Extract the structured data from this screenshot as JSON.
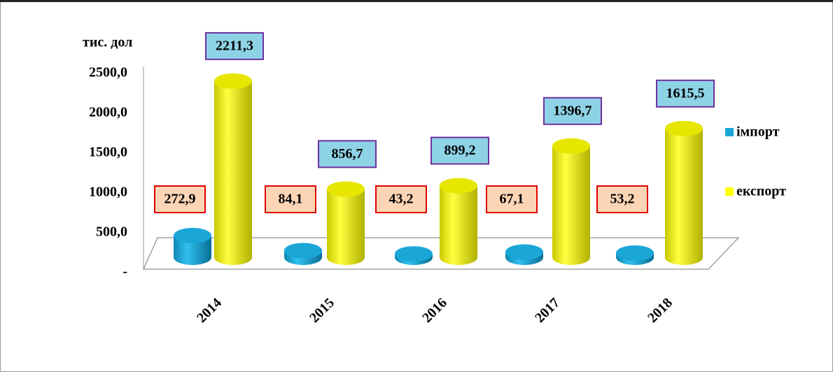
{
  "chart_data": {
    "type": "bar3d",
    "y_label": "тис. дол",
    "categories": [
      "2014",
      "2015",
      "2016",
      "2017",
      "2018"
    ],
    "series": [
      {
        "name": "імпорт",
        "color": "#1aa7d8",
        "values": [
          272.9,
          84.1,
          43.2,
          67.1,
          53.2
        ],
        "value_labels": [
          "272,9",
          "84,1",
          "43,2",
          "67,1",
          "53,2"
        ]
      },
      {
        "name": "експорт",
        "color": "#ffff00",
        "values": [
          2211.3,
          856.7,
          899.2,
          1396.7,
          1615.5
        ],
        "value_labels": [
          "2211,3",
          "856,7",
          "899,2",
          "1396,7",
          "1615,5"
        ]
      }
    ],
    "ylim": [
      0,
      2500
    ],
    "yticks": [
      {
        "value": 0,
        "label": "-"
      },
      {
        "value": 500,
        "label": "500,0"
      },
      {
        "value": 1000,
        "label": "1000,0"
      },
      {
        "value": 1500,
        "label": "1500,0"
      },
      {
        "value": 2000,
        "label": "2000,0"
      },
      {
        "value": 2500,
        "label": "2500,0"
      }
    ],
    "legend": "right"
  }
}
